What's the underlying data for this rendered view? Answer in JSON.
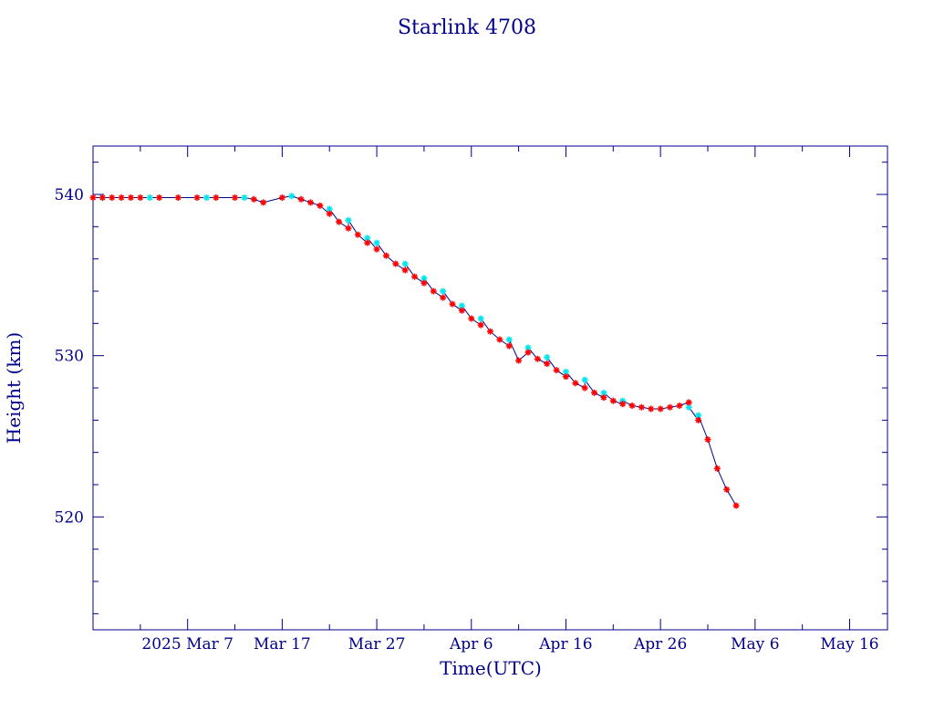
{
  "chart_data": {
    "type": "scatter",
    "title": "Starlink 4708",
    "xlabel": "Time(UTC)",
    "ylabel": "Height (km)",
    "xlim": [
      "2025-02-25",
      "2025-05-20"
    ],
    "ylim": [
      513,
      543
    ],
    "x_ticks": [
      {
        "date": "2025-03-07",
        "label": "2025 Mar  7"
      },
      {
        "date": "2025-03-17",
        "label": "Mar 17"
      },
      {
        "date": "2025-03-27",
        "label": "Mar 27"
      },
      {
        "date": "2025-04-06",
        "label": "Apr  6"
      },
      {
        "date": "2025-04-16",
        "label": "Apr 16"
      },
      {
        "date": "2025-04-26",
        "label": "Apr 26"
      },
      {
        "date": "2025-05-06",
        "label": "May  6"
      },
      {
        "date": "2025-05-16",
        "label": "May 16"
      }
    ],
    "y_ticks": [
      520,
      530,
      540
    ],
    "grid": false,
    "colors": {
      "frame": "#00008b",
      "line": "#00008b",
      "red": "#ff0000",
      "cyan": "#00e5ee"
    },
    "series": [
      {
        "marker": "red-asterisk",
        "color": "#ff0000",
        "points": [
          [
            "2025-02-25",
            539.8
          ],
          [
            "2025-02-26",
            539.8
          ],
          [
            "2025-02-27",
            539.8
          ],
          [
            "2025-02-28",
            539.8
          ],
          [
            "2025-03-01",
            539.8
          ],
          [
            "2025-03-02",
            539.8
          ],
          [
            "2025-03-04",
            539.8
          ],
          [
            "2025-03-06",
            539.8
          ],
          [
            "2025-03-08",
            539.8
          ],
          [
            "2025-03-10",
            539.8
          ],
          [
            "2025-03-12",
            539.8
          ],
          [
            "2025-03-14",
            539.7
          ],
          [
            "2025-03-15",
            539.5
          ],
          [
            "2025-03-17",
            539.8
          ],
          [
            "2025-03-19",
            539.7
          ],
          [
            "2025-03-20",
            539.5
          ],
          [
            "2025-03-21",
            539.3
          ],
          [
            "2025-03-22",
            538.8
          ],
          [
            "2025-03-23",
            538.3
          ],
          [
            "2025-03-24",
            537.9
          ],
          [
            "2025-03-25",
            537.5
          ],
          [
            "2025-03-26",
            537.0
          ],
          [
            "2025-03-27",
            536.6
          ],
          [
            "2025-03-28",
            536.2
          ],
          [
            "2025-03-29",
            535.7
          ],
          [
            "2025-03-30",
            535.3
          ],
          [
            "2025-03-31",
            534.9
          ],
          [
            "2025-04-01",
            534.5
          ],
          [
            "2025-04-02",
            534.0
          ],
          [
            "2025-04-03",
            533.6
          ],
          [
            "2025-04-04",
            533.2
          ],
          [
            "2025-04-05",
            532.8
          ],
          [
            "2025-04-06",
            532.3
          ],
          [
            "2025-04-07",
            531.9
          ],
          [
            "2025-04-08",
            531.5
          ],
          [
            "2025-04-09",
            531.0
          ],
          [
            "2025-04-10",
            530.6
          ],
          [
            "2025-04-11",
            529.7
          ],
          [
            "2025-04-12",
            530.2
          ],
          [
            "2025-04-13",
            529.8
          ],
          [
            "2025-04-14",
            529.5
          ],
          [
            "2025-04-15",
            529.1
          ],
          [
            "2025-04-16",
            528.7
          ],
          [
            "2025-04-17",
            528.3
          ],
          [
            "2025-04-18",
            528.0
          ],
          [
            "2025-04-19",
            527.7
          ],
          [
            "2025-04-20",
            527.4
          ],
          [
            "2025-04-21",
            527.2
          ],
          [
            "2025-04-22",
            527.0
          ],
          [
            "2025-04-23",
            526.9
          ],
          [
            "2025-04-24",
            526.8
          ],
          [
            "2025-04-25",
            526.7
          ],
          [
            "2025-04-26",
            526.7
          ],
          [
            "2025-04-27",
            526.8
          ],
          [
            "2025-04-28",
            526.9
          ],
          [
            "2025-04-29",
            527.1
          ],
          [
            "2025-04-30",
            526.0
          ],
          [
            "2025-05-01",
            524.8
          ],
          [
            "2025-05-02",
            523.0
          ],
          [
            "2025-05-03",
            521.7
          ],
          [
            "2025-05-04",
            520.7
          ]
        ]
      },
      {
        "marker": "cyan-asterisk",
        "color": "#00e5ee",
        "points": [
          [
            "2025-02-26",
            539.8
          ],
          [
            "2025-03-03",
            539.8
          ],
          [
            "2025-03-09",
            539.8
          ],
          [
            "2025-03-13",
            539.8
          ],
          [
            "2025-03-18",
            539.9
          ],
          [
            "2025-03-22",
            539.1
          ],
          [
            "2025-03-24",
            538.4
          ],
          [
            "2025-03-26",
            537.3
          ],
          [
            "2025-03-27",
            537.0
          ],
          [
            "2025-03-30",
            535.7
          ],
          [
            "2025-04-01",
            534.8
          ],
          [
            "2025-04-03",
            534.0
          ],
          [
            "2025-04-05",
            533.1
          ],
          [
            "2025-04-07",
            532.3
          ],
          [
            "2025-04-10",
            531.0
          ],
          [
            "2025-04-12",
            530.5
          ],
          [
            "2025-04-14",
            529.9
          ],
          [
            "2025-04-16",
            529.0
          ],
          [
            "2025-04-18",
            528.5
          ],
          [
            "2025-04-20",
            527.7
          ],
          [
            "2025-04-22",
            527.2
          ],
          [
            "2025-04-29",
            526.8
          ],
          [
            "2025-04-30",
            526.3
          ]
        ]
      }
    ]
  }
}
